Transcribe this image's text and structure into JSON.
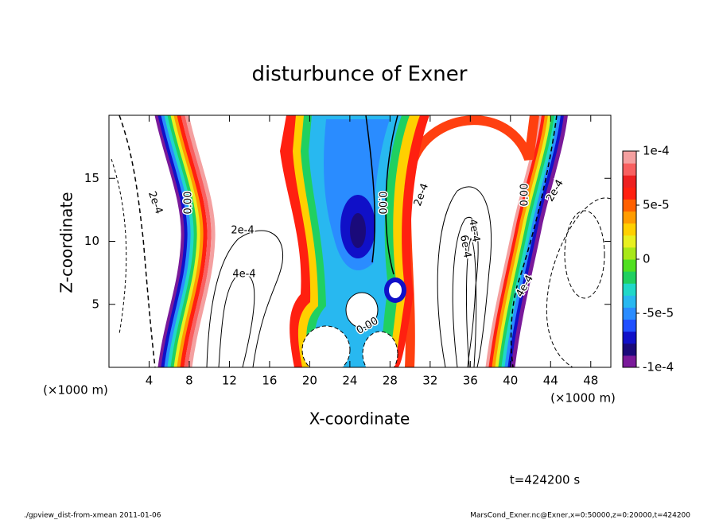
{
  "chart_data": {
    "type": "contour",
    "title": "disturbunce of Exner",
    "xlabel": "X-coordinate",
    "ylabel": "Z-coordinate",
    "x_unit": "(×1000 m)",
    "y_unit": "(×1000 m)",
    "xlim": [
      0,
      50
    ],
    "xticks": [
      4,
      8,
      12,
      16,
      20,
      24,
      28,
      32,
      36,
      40,
      44,
      48
    ],
    "ylim": [
      0,
      20
    ],
    "yticks": [
      5,
      10,
      15
    ],
    "colorbar": {
      "lim": [
        -0.0001,
        0.0001
      ],
      "ticks": [
        {
          "value": 0.0001,
          "label": "1e-4"
        },
        {
          "value": 5e-05,
          "label": "5e-5"
        },
        0,
        {
          "value": -5e-05,
          "label": "-5e-5"
        },
        {
          "value": -0.0001,
          "label": "-1e-4"
        }
      ],
      "colors": [
        "#7a1a9a",
        "#1a0a7a",
        "#1010c8",
        "#2050ff",
        "#2a8cff",
        "#28b8f0",
        "#20d8c8",
        "#20d060",
        "#50e020",
        "#a8e818",
        "#e8f020",
        "#ffd000",
        "#ff9c00",
        "#ff6000",
        "#ff2010",
        "#ee2020",
        "#f86060",
        "#f4a0a0"
      ]
    },
    "contour_labels": [
      "2e-4",
      "0.00",
      "2e-4",
      "4e-4",
      "0.00",
      "2e-4",
      "4e-4",
      "6e-4",
      "0.00",
      "0.00",
      "2e-4",
      "4e-4"
    ],
    "time_label": "t=424200 s",
    "footer_left": "./gpview_dist-from-xmean  2011-01-06",
    "footer_right": "MarsCond_Exner.nc@Exner,x=0:50000,z=0:20000,t=424200"
  }
}
